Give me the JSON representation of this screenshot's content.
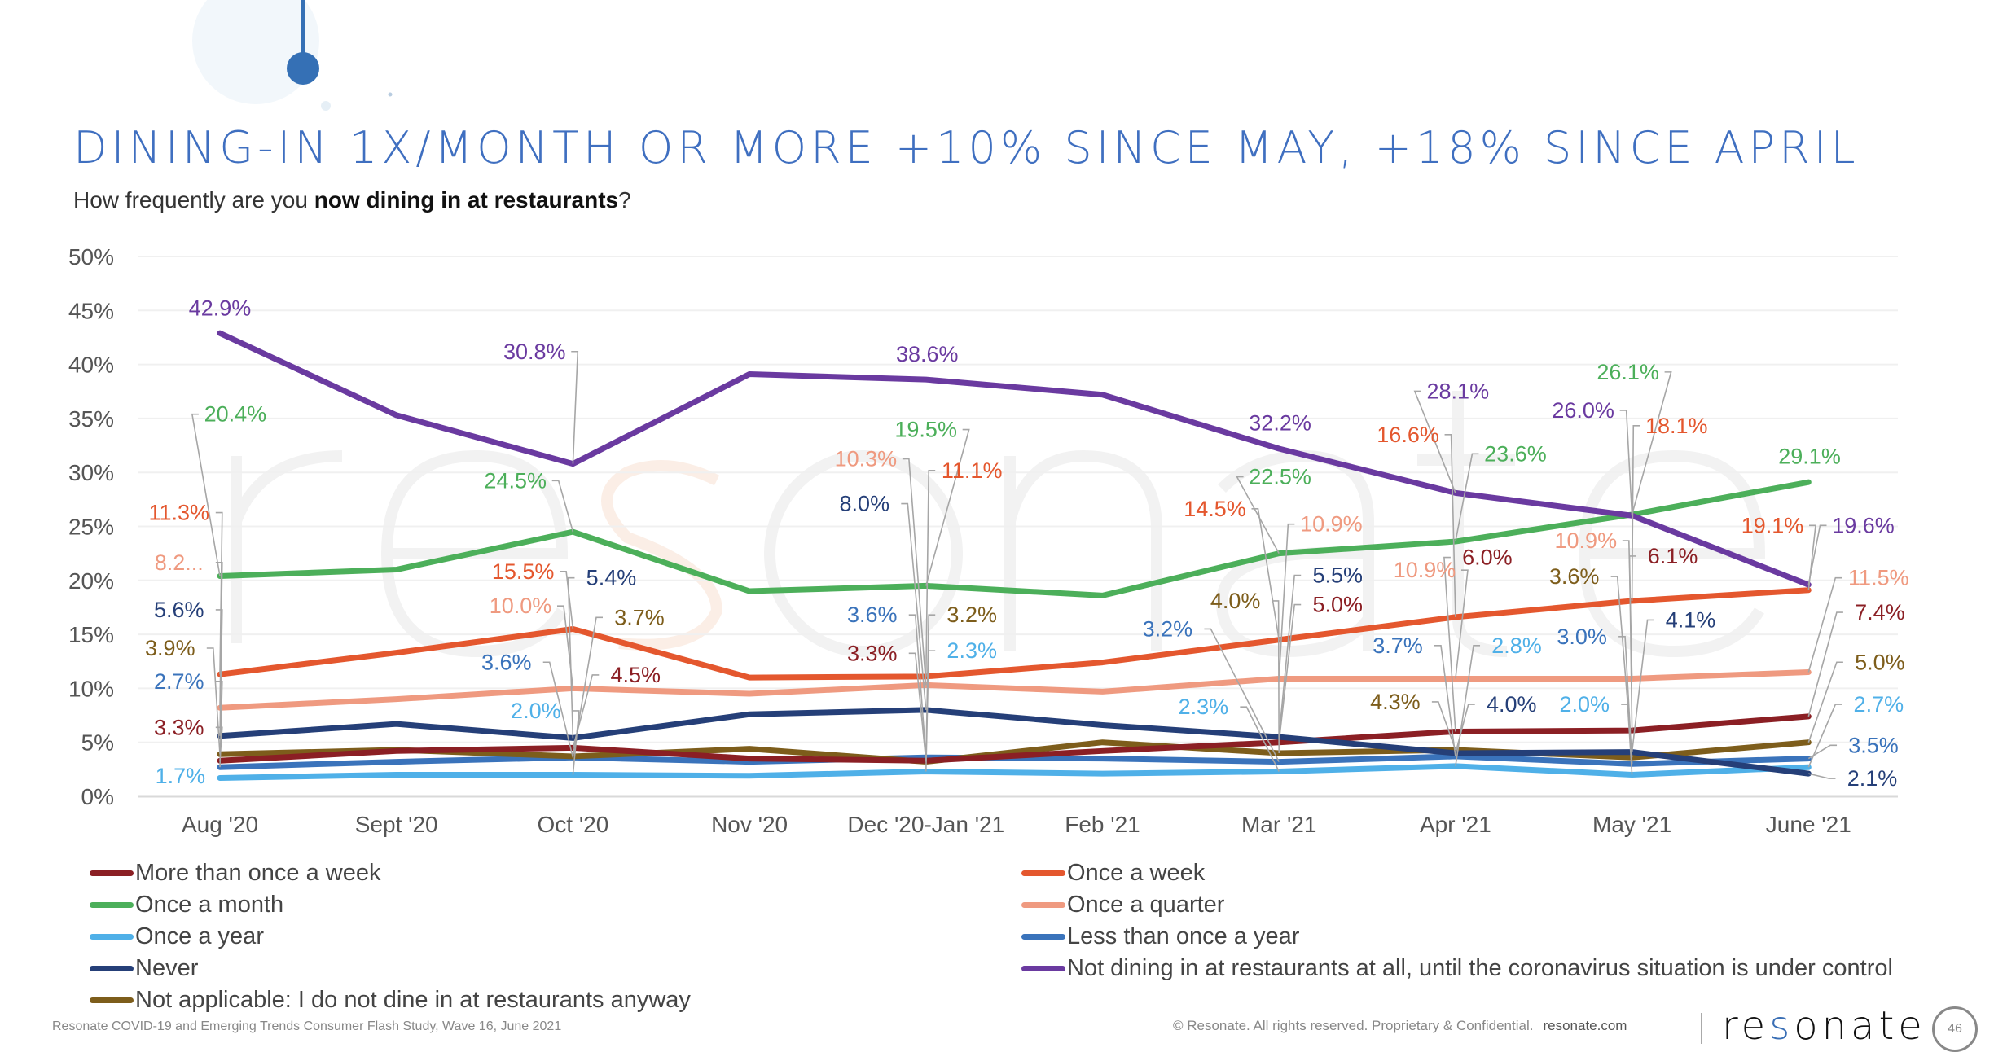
{
  "header": {
    "title": "DINING-IN 1X/MONTH OR MORE +10% SINCE MAY, +18% SINCE APRIL",
    "subtitle_pre": "How frequently are you ",
    "subtitle_bold": "now dining in at restaurants",
    "subtitle_post": "?"
  },
  "chart_data": {
    "type": "line",
    "title": "",
    "xlabel": "",
    "ylabel": "",
    "categories": [
      "Aug '20",
      "Sept '20",
      "Oct '20",
      "Nov '20",
      "Dec '20-Jan '21",
      "Feb '21",
      "Mar '21",
      "Apr '21",
      "May '21",
      "June '21"
    ],
    "ylim": [
      0,
      50
    ],
    "yticks": [
      "0%",
      "5%",
      "10%",
      "15%",
      "20%",
      "25%",
      "30%",
      "35%",
      "40%",
      "45%",
      "50%"
    ],
    "grid": true,
    "legend_position": "bottom",
    "series": [
      {
        "name": "More than once a week",
        "color": "#8b1f24",
        "values": [
          3.3,
          4.2,
          4.5,
          3.5,
          3.3,
          4.2,
          5.0,
          6.0,
          6.1,
          7.4
        ],
        "labels": [
          "3.3%",
          null,
          "4.5%",
          null,
          "3.3%",
          null,
          "5.0%",
          "6.0%",
          "6.1%",
          "7.4%"
        ]
      },
      {
        "name": "Once a week",
        "color": "#e4572e",
        "values": [
          11.3,
          13.3,
          15.5,
          11.0,
          11.1,
          12.4,
          14.5,
          16.6,
          18.1,
          19.1
        ],
        "labels": [
          "11.3%",
          null,
          "15.5%",
          null,
          "11.1%",
          null,
          "14.5%",
          "16.6%",
          "18.1%",
          "19.1%"
        ]
      },
      {
        "name": "Once a month",
        "color": "#4caf5a",
        "values": [
          20.4,
          21.0,
          24.5,
          19.0,
          19.5,
          18.6,
          22.5,
          23.6,
          26.1,
          29.1
        ],
        "labels": [
          "20.4%",
          null,
          "24.5%",
          null,
          "19.5%",
          null,
          "22.5%",
          "23.6%",
          "26.1%",
          "29.1%"
        ]
      },
      {
        "name": "Once a quarter",
        "color": "#ef9a80",
        "values": [
          8.2,
          9.0,
          10.0,
          9.5,
          10.3,
          9.7,
          10.9,
          10.9,
          10.9,
          11.5
        ],
        "labels": [
          "8.2...",
          null,
          "10.0%",
          null,
          "10.3%",
          null,
          "10.9%",
          "10.9%",
          "10.9%",
          "11.5%"
        ]
      },
      {
        "name": "Once a year",
        "color": "#4fb0e8",
        "values": [
          1.7,
          2.0,
          2.0,
          1.9,
          2.3,
          2.1,
          2.3,
          2.8,
          2.0,
          2.7
        ],
        "labels": [
          "1.7%",
          null,
          "2.0%",
          null,
          "2.3%",
          null,
          "2.3%",
          "2.8%",
          "2.0%",
          "2.7%"
        ]
      },
      {
        "name": "Less than once a year",
        "color": "#3a73bb",
        "values": [
          2.7,
          3.2,
          3.6,
          3.2,
          3.6,
          3.5,
          3.2,
          3.7,
          3.0,
          3.5
        ],
        "labels": [
          "2.7%",
          null,
          "3.6%",
          null,
          "3.6%",
          null,
          "3.2%",
          "3.7%",
          "3.0%",
          "3.5%"
        ]
      },
      {
        "name": "Never",
        "color": "#253f78",
        "values": [
          5.6,
          6.7,
          5.4,
          7.6,
          8.0,
          6.6,
          5.5,
          4.0,
          4.1,
          2.1
        ],
        "labels": [
          "5.6%",
          null,
          "5.4%",
          null,
          "8.0%",
          null,
          "5.5%",
          "4.0%",
          "4.1%",
          "2.1%"
        ]
      },
      {
        "name": "Not dining in at restaurants at all, until the coronavirus situation is under control",
        "color": "#6a3aa0",
        "values": [
          42.9,
          35.3,
          30.8,
          39.1,
          38.6,
          37.2,
          32.2,
          28.1,
          26.0,
          19.6
        ],
        "labels": [
          "42.9%",
          null,
          "30.8%",
          null,
          "38.6%",
          null,
          "32.2%",
          "28.1%",
          "26.0%",
          "19.6%"
        ]
      },
      {
        "name": "Not applicable: I do not dine in at restaurants anyway",
        "color": "#7d5d1b",
        "values": [
          3.9,
          4.3,
          3.7,
          4.4,
          3.2,
          5.0,
          4.0,
          4.3,
          3.6,
          5.0
        ],
        "labels": [
          "3.9%",
          null,
          "3.7%",
          null,
          "3.2%",
          null,
          "4.0%",
          "4.3%",
          "3.6%",
          "5.0%"
        ]
      }
    ]
  },
  "watermark": "resonate",
  "footer": {
    "source": "Resonate COVID-19 and Emerging Trends Consumer Flash Study, Wave 16, June 2021",
    "copyright": "© Resonate. All rights reserved. Proprietary & Confidential.",
    "site": "resonate.com",
    "logo_pre": "re",
    "logo_s": "s",
    "logo_post": "onate",
    "page_number": "46"
  }
}
